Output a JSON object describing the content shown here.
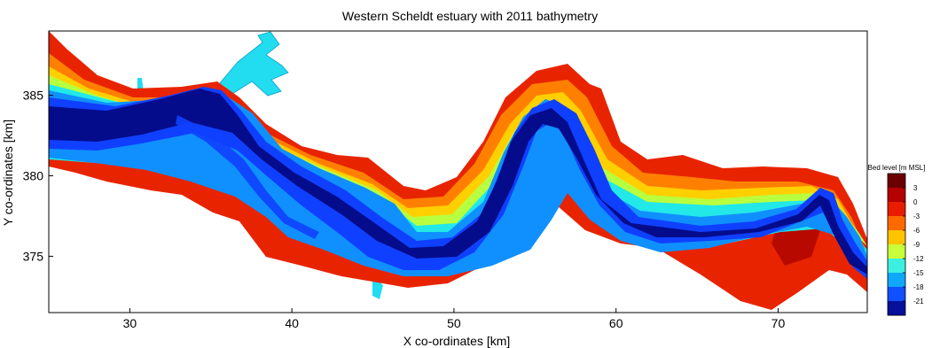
{
  "figure": {
    "title": "Western Scheldt estuary with 2011 bathymetry",
    "xlabel": "X co-ordinates [km]",
    "ylabel": "Y co-ordinates [km]",
    "xlim": [
      25,
      75.5
    ],
    "ylim": [
      371.5,
      389
    ],
    "x_ticks": [
      30,
      40,
      50,
      60,
      70
    ],
    "y_ticks": [
      375,
      380,
      385
    ],
    "colorbar": {
      "title": "Bed level [m MSL]",
      "ticks": [
        "3",
        "0",
        "-3",
        "-6",
        "-9",
        "-12",
        "-15",
        "-18",
        "-21"
      ],
      "colors": [
        "#6b0000",
        "#b40000",
        "#e81c00",
        "#ff6a00",
        "#ffc300",
        "#c8ff3a",
        "#3cf0e0",
        "#10a8ff",
        "#1050ff",
        "#06109a"
      ]
    }
  },
  "map_colors": {
    "land_channel": "#00e5ff",
    "high": "#b00000",
    "shoal": "#e82000",
    "intertidal": "#ff7a00",
    "shallow": "#ffd000",
    "mid": "#b8ff40",
    "deep_light": "#22e8e8",
    "deep": "#1090ff",
    "deeper": "#1040ff",
    "deepest": "#040c8c"
  }
}
